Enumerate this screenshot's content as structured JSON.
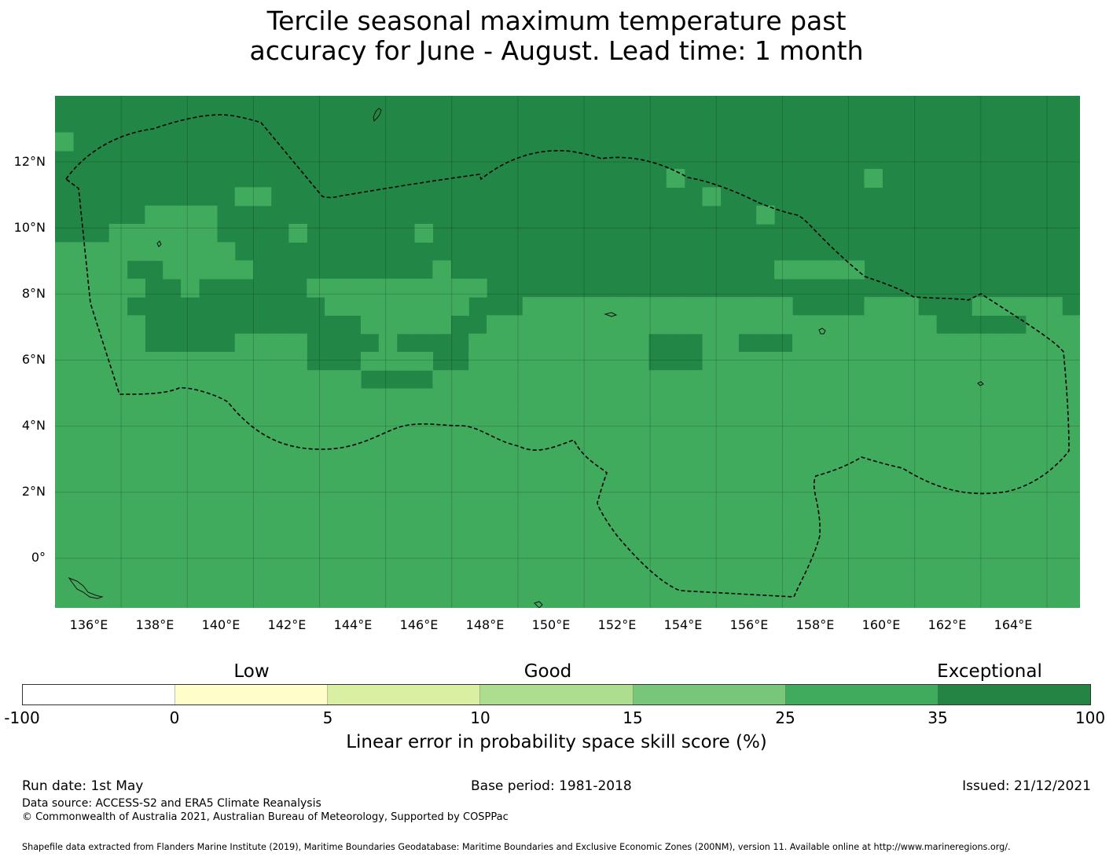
{
  "title": {
    "line1": "Tercile seasonal maximum temperature past",
    "line2": "accuracy for June - August. Lead time: 1 month"
  },
  "map": {
    "lat_labels": [
      "12°N",
      "10°N",
      "8°N",
      "6°N",
      "4°N",
      "2°N",
      "0°"
    ],
    "lon_labels": [
      "136°E",
      "138°E",
      "140°E",
      "142°E",
      "144°E",
      "146°E",
      "148°E",
      "150°E",
      "152°E",
      "154°E",
      "156°E",
      "158°E",
      "160°E",
      "162°E",
      "164°E"
    ],
    "lon_range": [
      134,
      165
    ],
    "lat_range": [
      -1.5,
      14
    ],
    "grid_lons": [
      136,
      138,
      140,
      142,
      144,
      146,
      148,
      150,
      152,
      154,
      156,
      158,
      160,
      162,
      164
    ],
    "grid_lats": [
      12,
      10,
      8,
      6,
      4,
      2,
      0
    ]
  },
  "colorbar": {
    "category_labels": [
      "Low",
      "Good",
      "Exceptional"
    ],
    "ticks": [
      "-100",
      "0",
      "5",
      "10",
      "15",
      "25",
      "35",
      "100"
    ],
    "colors": [
      "#ffffff",
      "#ffffcc",
      "#d9f0a3",
      "#addd8e",
      "#78c679",
      "#41ab5d",
      "#238443"
    ],
    "title": "Linear error in probability space skill score (%)"
  },
  "footer": {
    "run_date": "Run date: 1st May",
    "base_period": "Base period: 1981-2018",
    "issued": "Issued: 21/12/2021",
    "data_source": "Data source: ACCESS-S2 and ERA5 Climate Reanalysis",
    "copyright": "© Commonwealth of Australia 2021, Australian Bureau of Meteorology, Supported by COSPPac",
    "shapefile": "Shapefile data extracted from Flanders Marine Institute (2019), Maritime Boundaries Geodatabase: Maritime Boundaries and Exclusive Economic Zones (200NM), version 11. Available online at http://www.marineregions.org/."
  },
  "grid_skill": [
    "ddddddddddddddddddddddddddddddddddddddddddddddddddddddddd",
    "ddddddddddddddddddddddddddddddddddddddddddddddddddddddddd",
    "mdddddddddddddddddddddddddddddddddddddddddddddddddddddddd",
    "ddddddddddddddddddddddddddddddddddddddddddddddddddddddddd",
    "ddddddddddddddddddddddddddddddddddmddddddddddmddddddddddd",
    "ddddddddddmmddddddddddddddddddddddddmdddddddddddddddddddd",
    "dddddmmmmddddddddddddddddddddddddddddddmddddddddddddddddd",
    "dddmmmmmmddddmddddddmdddddddddddddddddddddddddddddddddddd",
    "mmmmmmmmmmdddddddddddddddddddddddddddddddddddddddddddddddd",
    "mmmmddmmmmmddddddddddmddddddddddddddddddmmmmmddddddddddddd",
    "mmmmmddmddddddmmmmmmmmmmdddddddddddddddddddddddddddddddddd",
    "mmmmdddddddddddmmmmmmmmdddmmmmmmmmmmmmmmmddddmmmdddmmmmmdd",
    "mmmmmddddddddddddmmmmmddmmmmmmmmmmmmmmmmmmmmmmmmmdddddmmmm",
    "mmmmmdddddmmmmddddmddddmmmmmmmmmmdddmmdddmmmmmmmmmmmmmmmmm",
    "mmmmmmmmmmmmmmdddmmmmddmmmmmmmmmmdddmmmmmmmmmmmmmmmmmmmmmm",
    "mmmmmmmmmmmmmmmmmddddmmmmmmmmmmmmmmmmmmmmmmmmmmmmmmmmmmmmm",
    "mmmmmmmmmmmmmmmmmmmmmmmmmmmmmmmmmmmmmmmmmmmmmmmmmmmmmmmmmm",
    "mmmmmmmmmmmmmmmmmmmmmmmmmmmmmmmmmmmmmmmmmmmmmmmmmmmmmmmmmm",
    "mmmmmmmmmmmmmmmmmmmmmmmmmmmmmmmmmmmmmmmmmmmmmmmmmmmmmmmmmm",
    "mmmmmmmmmmmmmmmmmmmmmmmmmmmmmmmmmmmmmmmmmmmmmmmmmmmmmmmmmm",
    "mmmmmmmmmmmmmmmmmmmmmmmmmmmmmmmmmmmmmmmmmmmmmmmmmmmmmmmmmm",
    "mmmmmmmmmmmmmmmmmmmmmmmmmmmmmmmmmmmmmmmmmmmmmmmmmmmmmmmmmm",
    "mmmmmmmmmmmmmmmmmmmmmmmmmmmmmmmmmmmmmmmmmmmmmmmmmmmmmmmmmm",
    "mmmmmmmmmmmmmmmmmmmmmmmmmmmmmmmmmmmmmmmmmmmmmmmmmmmmmmmmmm",
    "mmmmmmmmmmmmmmmmmmmmmmmmmmmmmmmmmmmmmmmmmmmmmmmmmmmmmmmmmm",
    "mmmmmmmmmmmmmmmmmmmmmmmmmmmmmmmmmmmmmmmmmmmmmmmmmmmmmmmmmm",
    "mmmmmmmmmmmmmmmmmmmmmmmmmmmmmmmmmmmmmmmmmmmmmmmmmmmmmmmmmm",
    "mmmmmmmmmmmmmmmmmmmmmmmmmmmmmmmmmmmmmmmmmmmmmmmmmmmmmmmmmm"
  ]
}
